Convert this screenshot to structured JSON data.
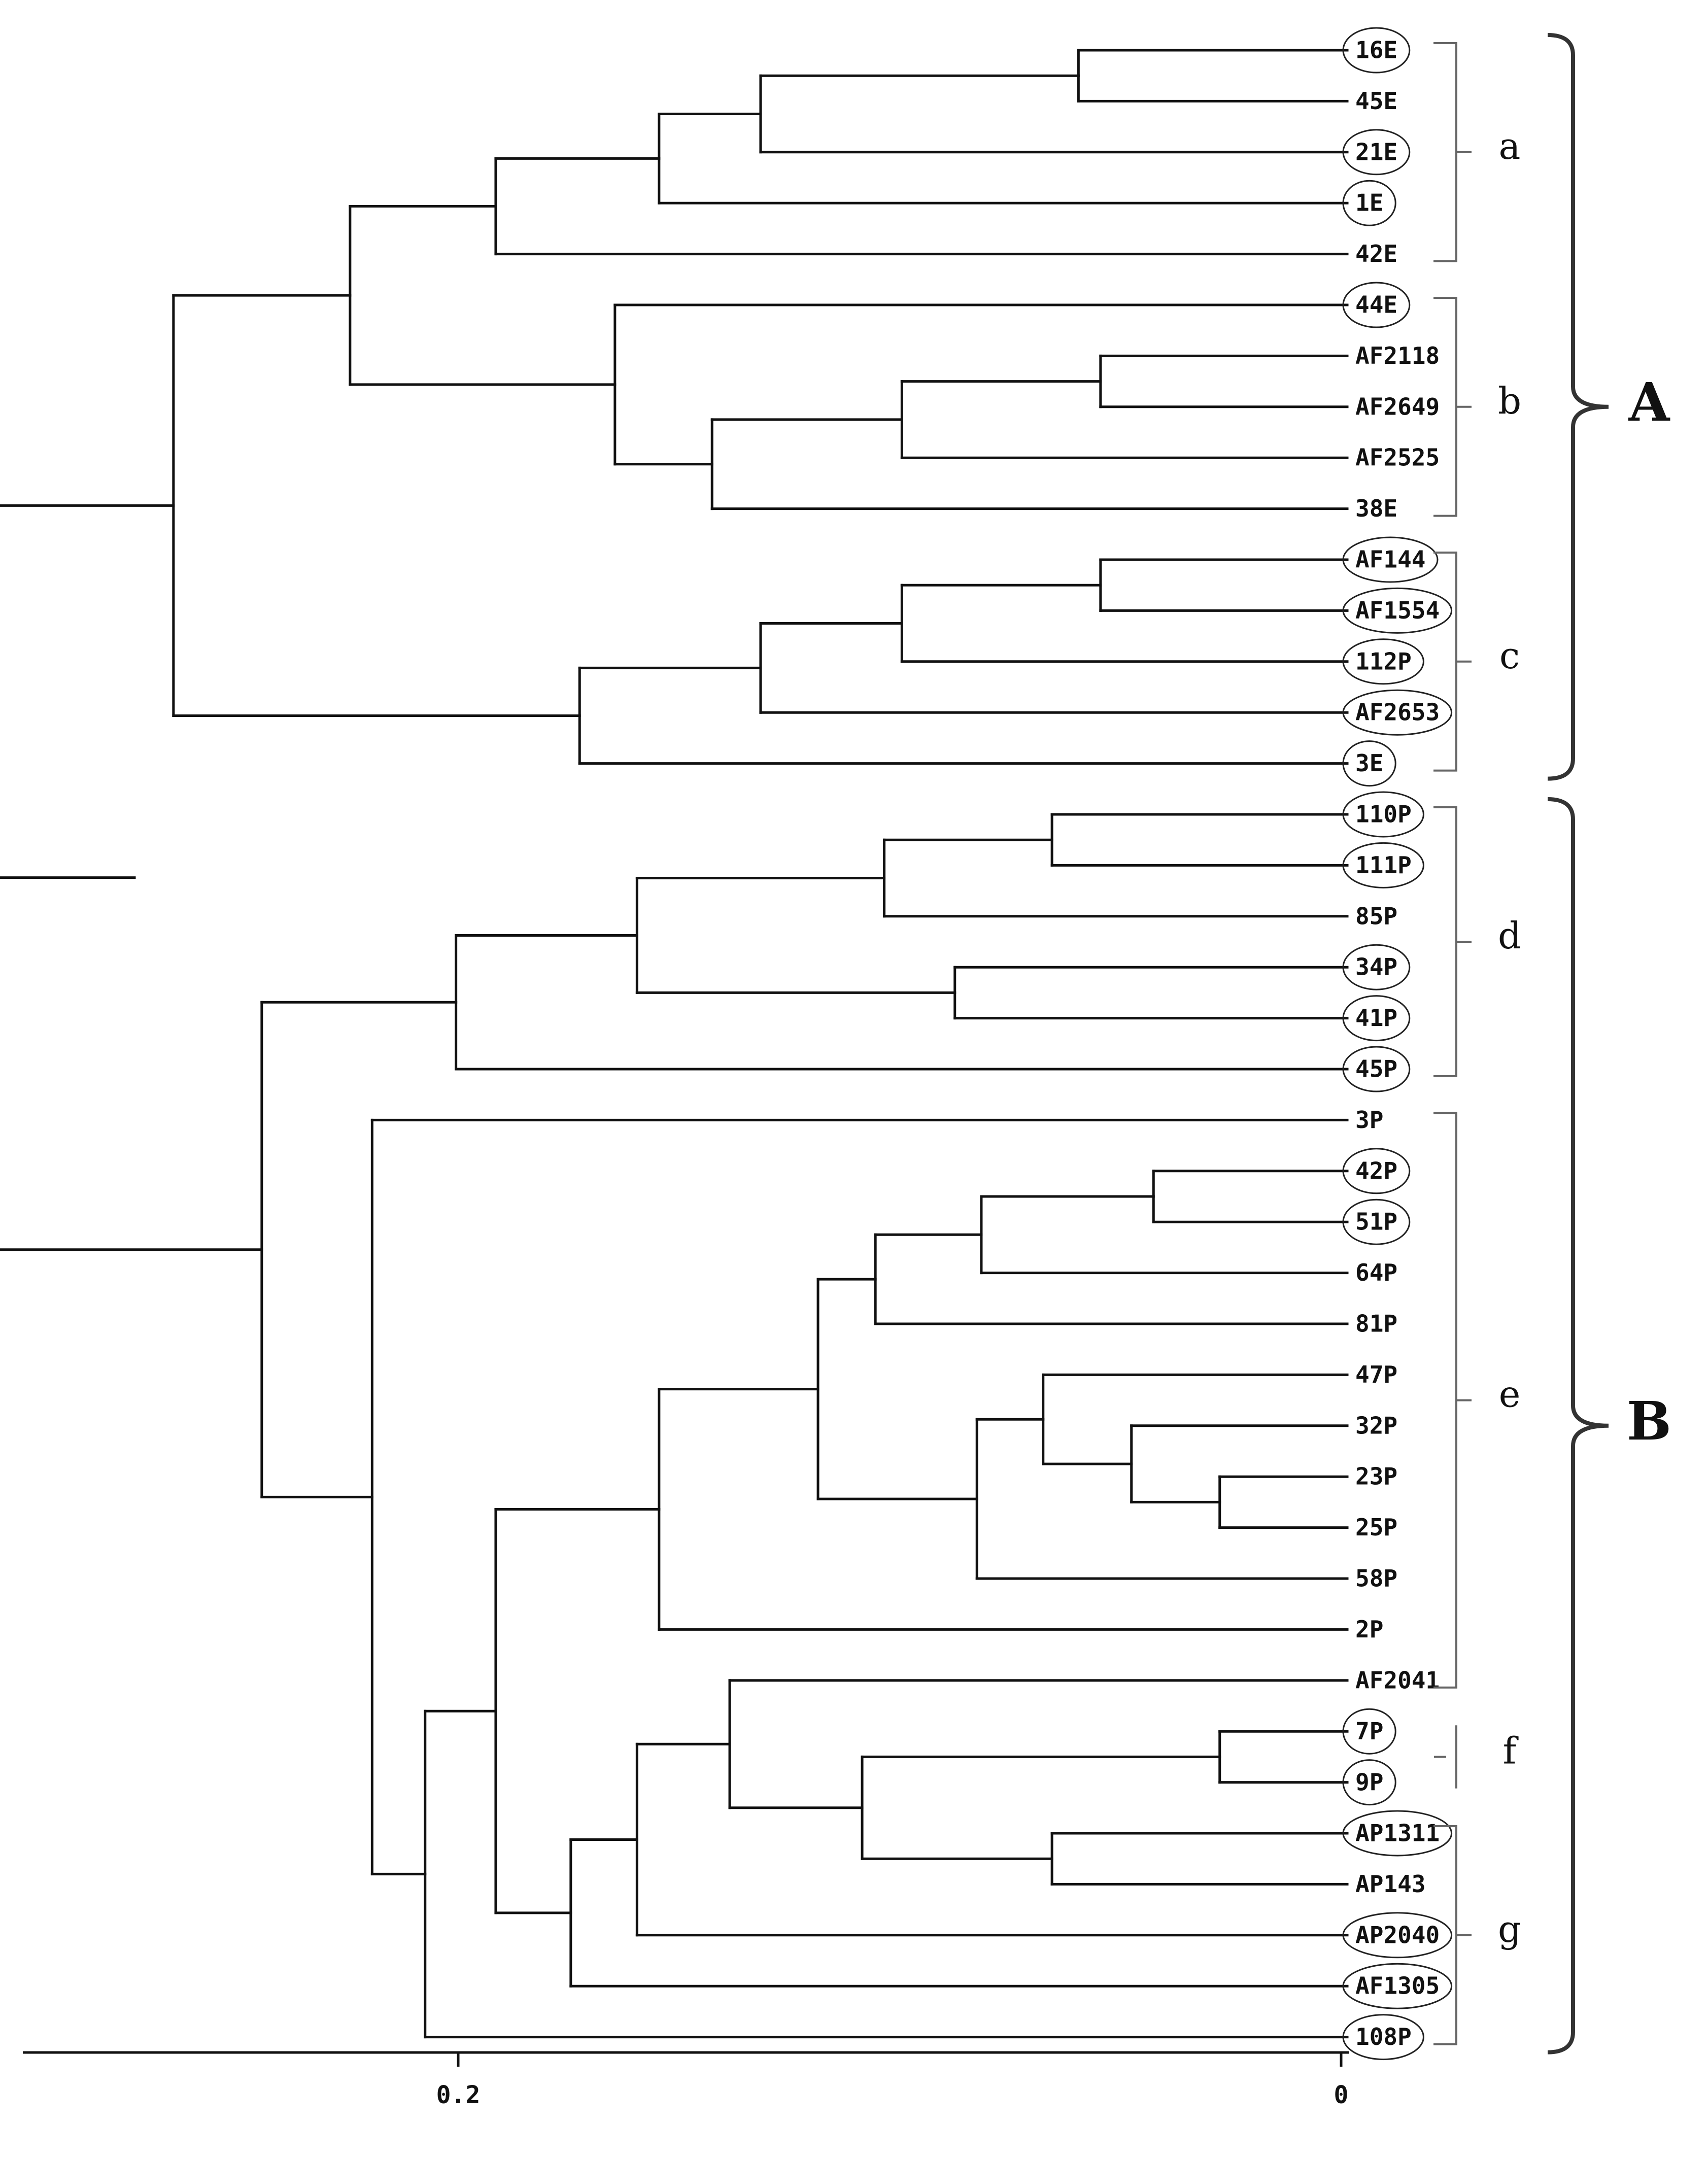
{
  "figure": {
    "axis": {
      "ticks": [
        {
          "value": 0.2,
          "label": "0.2"
        },
        {
          "value": 0,
          "label": "0"
        }
      ]
    },
    "leaves": [
      {
        "label": "16E",
        "circled": true
      },
      {
        "label": "45E",
        "circled": false
      },
      {
        "label": "21E",
        "circled": true
      },
      {
        "label": "1E",
        "circled": true
      },
      {
        "label": "42E",
        "circled": false
      },
      {
        "label": "44E",
        "circled": true
      },
      {
        "label": "AF2118",
        "circled": false
      },
      {
        "label": "AF2649",
        "circled": false
      },
      {
        "label": "AF2525",
        "circled": false
      },
      {
        "label": "38E",
        "circled": false
      },
      {
        "label": "AF144",
        "circled": true
      },
      {
        "label": "AF1554",
        "circled": true
      },
      {
        "label": "112P",
        "circled": true
      },
      {
        "label": "AF2653",
        "circled": true
      },
      {
        "label": "3E",
        "circled": true
      },
      {
        "label": "110P",
        "circled": true
      },
      {
        "label": "111P",
        "circled": true
      },
      {
        "label": "85P",
        "circled": false
      },
      {
        "label": "34P",
        "circled": true
      },
      {
        "label": "41P",
        "circled": true
      },
      {
        "label": "45P",
        "circled": true
      },
      {
        "label": "3P",
        "circled": false
      },
      {
        "label": "42P",
        "circled": true
      },
      {
        "label": "51P",
        "circled": true
      },
      {
        "label": "64P",
        "circled": false
      },
      {
        "label": "81P",
        "circled": false
      },
      {
        "label": "47P",
        "circled": false
      },
      {
        "label": "32P",
        "circled": false
      },
      {
        "label": "23P",
        "circled": false
      },
      {
        "label": "25P",
        "circled": false
      },
      {
        "label": "58P",
        "circled": false
      },
      {
        "label": "2P",
        "circled": false
      },
      {
        "label": "AF2041",
        "circled": false
      },
      {
        "label": "7P",
        "circled": true
      },
      {
        "label": "9P",
        "circled": true
      },
      {
        "label": "AP1311",
        "circled": true
      },
      {
        "label": "AP143",
        "circled": false
      },
      {
        "label": "AP2040",
        "circled": true
      },
      {
        "label": "AF1305",
        "circled": true
      },
      {
        "label": "108P",
        "circled": true
      }
    ],
    "subclusters": [
      {
        "label": "a",
        "first_leaf": 0,
        "last_leaf": 4
      },
      {
        "label": "b",
        "first_leaf": 5,
        "last_leaf": 9
      },
      {
        "label": "c",
        "first_leaf": 10,
        "last_leaf": 14
      },
      {
        "label": "d",
        "first_leaf": 15,
        "last_leaf": 20
      },
      {
        "label": "e",
        "first_leaf": 21,
        "last_leaf": 32
      },
      {
        "label": "f",
        "first_leaf": 33,
        "last_leaf": 34
      },
      {
        "label": "g",
        "first_leaf": 35,
        "last_leaf": 39
      }
    ],
    "clusters": [
      {
        "label": "A",
        "first_leaf": 0,
        "last_leaf": 14
      },
      {
        "label": "B",
        "first_leaf": 15,
        "last_leaf": 39
      }
    ],
    "tree": {
      "h": 0.2645,
      "children": [
        {
          "h": 0.2245,
          "children": [
            {
              "h": 0.1915,
              "children": [
                {
                  "h": 0.1545,
                  "children": [
                    {
                      "h": 0.1315,
                      "children": [
                        {
                          "h": 0.0595,
                          "children": [
                            {
                              "leaf": 0
                            },
                            {
                              "leaf": 1
                            }
                          ]
                        },
                        {
                          "leaf": 2
                        }
                      ]
                    },
                    {
                      "leaf": 3
                    }
                  ]
                },
                {
                  "leaf": 4
                }
              ]
            },
            {
              "h": 0.1645,
              "children": [
                {
                  "leaf": 5
                },
                {
                  "h": 0.1425,
                  "children": [
                    {
                      "h": 0.0995,
                      "children": [
                        {
                          "h": 0.0545,
                          "children": [
                            {
                              "leaf": 6
                            },
                            {
                              "leaf": 7
                            }
                          ]
                        },
                        {
                          "leaf": 8
                        }
                      ]
                    },
                    {
                      "leaf": 9
                    }
                  ]
                }
              ]
            }
          ]
        },
        {
          "h": 0.1725,
          "children": [
            {
              "h": 0.1315,
              "children": [
                {
                  "h": 0.0995,
                  "children": [
                    {
                      "h": 0.0545,
                      "children": [
                        {
                          "leaf": 10
                        },
                        {
                          "leaf": 11
                        }
                      ]
                    },
                    {
                      "leaf": 12
                    }
                  ]
                },
                {
                  "leaf": 13
                }
              ]
            },
            {
              "leaf": 14
            }
          ]
        }
      ]
    }
  }
}
